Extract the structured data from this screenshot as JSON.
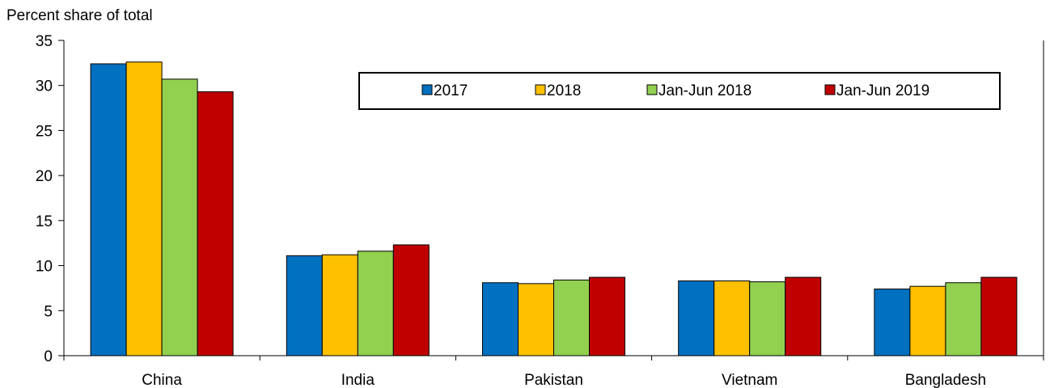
{
  "chart_data": {
    "type": "bar",
    "ylabel": "Percent share of total",
    "ylim": [
      0,
      35
    ],
    "yticks": [
      0,
      5,
      10,
      15,
      20,
      25,
      30,
      35
    ],
    "categories": [
      "China",
      "India",
      "Pakistan",
      "Vietnam",
      "Bangladesh"
    ],
    "series": [
      {
        "name": "2017",
        "color": "#0070C0",
        "values": [
          32.4,
          11.1,
          8.1,
          8.3,
          7.4
        ]
      },
      {
        "name": "2018",
        "color": "#FFC000",
        "values": [
          32.6,
          11.2,
          8.0,
          8.3,
          7.7
        ]
      },
      {
        "name": "Jan-Jun 2018",
        "color": "#92D050",
        "values": [
          30.7,
          11.6,
          8.4,
          8.2,
          8.1
        ]
      },
      {
        "name": "Jan-Jun 2019",
        "color": "#C00000",
        "values": [
          29.3,
          12.3,
          8.7,
          8.7,
          8.7
        ]
      }
    ],
    "legend_position": "top-right",
    "grid": false
  }
}
